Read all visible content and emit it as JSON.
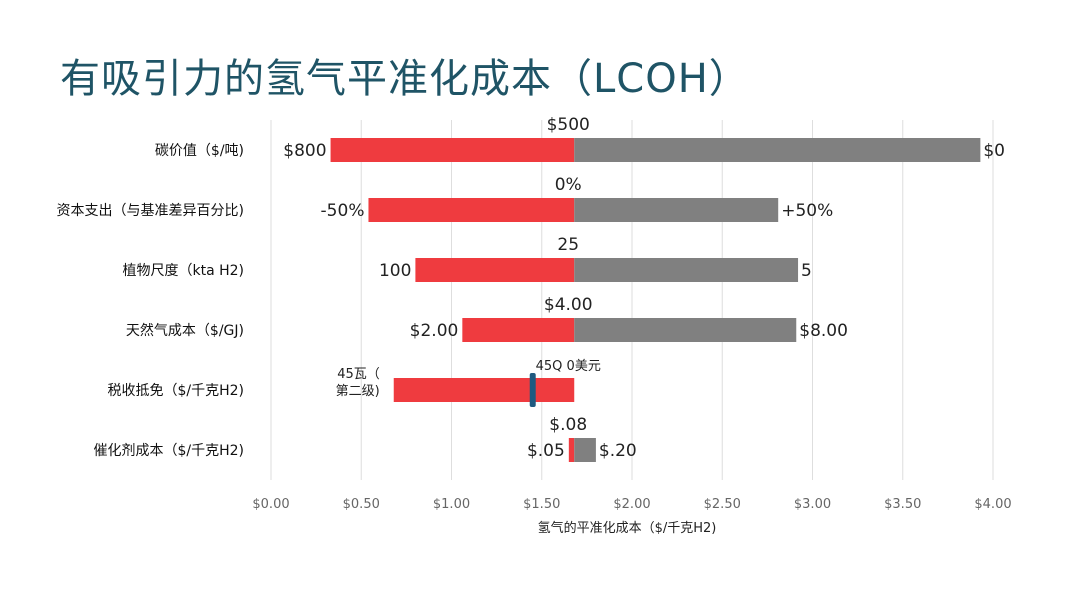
{
  "title": "有吸引力的氢气平准化成本（LCOH）",
  "chart_data": {
    "type": "bar",
    "subtype": "tornado",
    "base_value": 1.68,
    "xlabel": "氢气的平准化成本（$/千克H2)",
    "xlim": [
      0,
      4
    ],
    "xticks": [
      0,
      0.5,
      1,
      1.5,
      2,
      2.5,
      3,
      3.5,
      4
    ],
    "xtick_labels": [
      "$0.00",
      "$0.50",
      "$1.00",
      "$1.50",
      "$2.00",
      "$2.50",
      "$3.00",
      "$3.50",
      "$4.00"
    ],
    "grid": true,
    "colors": {
      "low": "#ef3b3f",
      "high": "#808080",
      "marker": "#1f5a80",
      "title": "#1f5466"
    },
    "rows": [
      {
        "label": "碳价值（$/吨)",
        "base_label": "$500",
        "low_label": "$800",
        "low_value": 0.33,
        "high_label": "$0",
        "high_value": 3.93
      },
      {
        "label": "资本支出（与基准差异百分比)",
        "base_label": "0%",
        "low_label": "-50%",
        "low_value": 0.54,
        "high_label": "+50%",
        "high_value": 2.81
      },
      {
        "label": "植物尺度（kta H2)",
        "base_label": "25",
        "low_label": "100",
        "low_value": 0.8,
        "high_label": "5",
        "high_value": 2.92
      },
      {
        "label": "天然气成本（$/GJ)",
        "base_label": "$4.00",
        "low_label": "$2.00",
        "low_value": 1.06,
        "high_label": "$8.00",
        "high_value": 2.91
      },
      {
        "label": "税收抵免（$/千克H2)",
        "base_label": "45Q 0美元",
        "low_label": "45瓦（\n第二级)",
        "low_value": 0.68,
        "high_label": "",
        "high_value": 1.68,
        "marker_value": 1.45
      },
      {
        "label": "催化剂成本（$/千克H2)",
        "base_label": "$.08",
        "low_label": "$.05",
        "low_value": 1.65,
        "high_label": "$.20",
        "high_value": 1.8
      }
    ]
  }
}
